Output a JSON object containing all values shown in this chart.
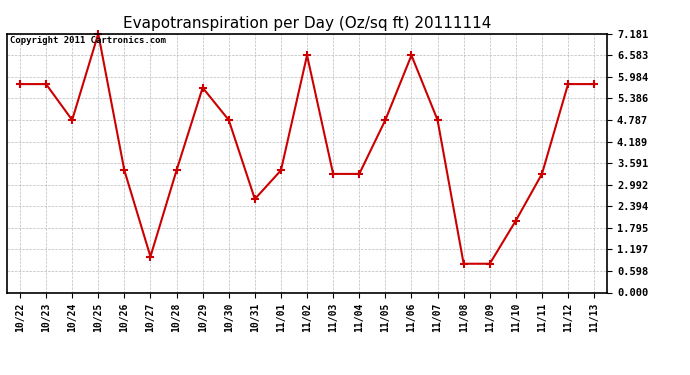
{
  "title": "Evapotranspiration per Day (Oz/sq ft) 20111114",
  "copyright": "Copyright 2011 Cartronics.com",
  "x_labels": [
    "10/22",
    "10/23",
    "10/24",
    "10/25",
    "10/26",
    "10/27",
    "10/28",
    "10/29",
    "10/30",
    "10/31",
    "11/01",
    "11/02",
    "11/03",
    "11/04",
    "11/05",
    "11/06",
    "11/07",
    "11/08",
    "11/09",
    "11/10",
    "11/11",
    "11/12",
    "11/13"
  ],
  "y_values": [
    5.784,
    5.784,
    4.787,
    7.181,
    3.391,
    0.997,
    3.391,
    5.684,
    4.787,
    2.594,
    3.391,
    6.583,
    3.291,
    3.291,
    4.787,
    6.583,
    4.787,
    0.798,
    0.798,
    1.995,
    3.291,
    5.784,
    5.784
  ],
  "line_color": "#cc0000",
  "marker": "+",
  "marker_size": 6,
  "marker_linewidth": 1.5,
  "line_width": 1.5,
  "y_min": 0.0,
  "y_max": 7.181,
  "y_ticks": [
    0.0,
    0.598,
    1.197,
    1.795,
    2.394,
    2.992,
    3.591,
    4.189,
    4.787,
    5.386,
    5.984,
    6.583,
    7.181
  ],
  "grid_color": "#aaaaaa",
  "background_color": "#ffffff",
  "title_fontsize": 11,
  "tick_fontsize": 7,
  "copyright_fontsize": 6.5
}
